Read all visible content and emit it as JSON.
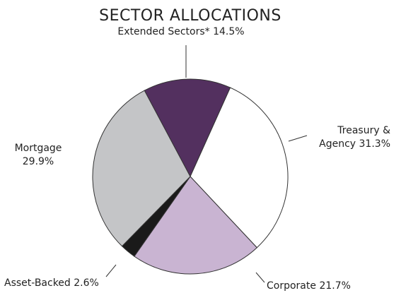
{
  "chart_data": {
    "type": "pie",
    "title": "SECTOR ALLOCATIONS",
    "categories": [
      "Extended Sectors*",
      "Treasury & Agency",
      "Corporate",
      "Asset-Backed",
      "Mortgage"
    ],
    "values": [
      14.5,
      31.3,
      21.7,
      2.6,
      29.9
    ],
    "value_labels": [
      "14.5%",
      "31.3%",
      "21.7%",
      "2.6%",
      "29.9%"
    ],
    "colors": [
      "#53305f",
      "#ffffff",
      "#c9b4d2",
      "#1a1a1a",
      "#c4c5c7"
    ]
  }
}
